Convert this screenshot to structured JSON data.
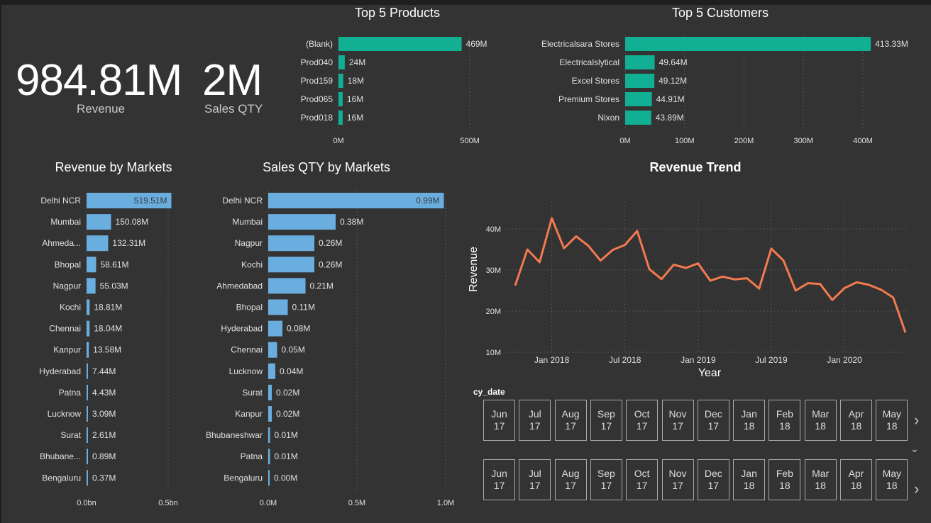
{
  "kpis": {
    "revenue": {
      "value": "984.81M",
      "label": "Revenue"
    },
    "sales_qty": {
      "value": "2M",
      "label": "Sales QTY"
    }
  },
  "colors": {
    "teal": "#11b094",
    "blue": "#6aaee0",
    "orange": "#f37a4f",
    "grid": "#555555",
    "axis_text": "#e0e0e0"
  },
  "chart_data": [
    {
      "id": "top_products",
      "type": "bar",
      "orientation": "horizontal",
      "title": "Top 5 Products",
      "categories": [
        "(Blank)",
        "Prod040",
        "Prod159",
        "Prod065",
        "Prod018"
      ],
      "values": [
        469,
        24,
        18,
        16,
        16
      ],
      "labels": [
        "469M",
        "24M",
        "18M",
        "16M",
        "16M"
      ],
      "xticks": [
        "0M",
        "500M"
      ],
      "xlim": [
        0,
        500
      ]
    },
    {
      "id": "top_customers",
      "type": "bar",
      "orientation": "horizontal",
      "title": "Top 5 Customers",
      "categories": [
        "Electricalsara Stores",
        "Electricalslytical",
        "Excel Stores",
        "Premium Stores",
        "Nixon"
      ],
      "values": [
        413.33,
        49.64,
        49.12,
        44.91,
        43.89
      ],
      "labels": [
        "413.33M",
        "49.64M",
        "49.12M",
        "44.91M",
        "43.89M"
      ],
      "xticks": [
        "0M",
        "100M",
        "200M",
        "300M",
        "400M"
      ],
      "xlim": [
        0,
        400
      ]
    },
    {
      "id": "revenue_markets",
      "type": "bar",
      "orientation": "horizontal",
      "title": "Revenue by Markets",
      "categories": [
        "Delhi NCR",
        "Mumbai",
        "Ahmeda...",
        "Bhopal",
        "Nagpur",
        "Kochi",
        "Chennai",
        "Kanpur",
        "Hyderabad",
        "Patna",
        "Lucknow",
        "Surat",
        "Bhubane...",
        "Bengaluru"
      ],
      "values": [
        519.51,
        150.08,
        132.31,
        58.61,
        55.03,
        18.81,
        18.04,
        13.58,
        7.44,
        4.43,
        3.09,
        2.61,
        0.89,
        0.37
      ],
      "labels": [
        "519.51M",
        "150.08M",
        "132.31M",
        "58.61M",
        "55.03M",
        "18.81M",
        "18.04M",
        "13.58M",
        "7.44M",
        "4.43M",
        "3.09M",
        "2.61M",
        "0.89M",
        "0.37M"
      ],
      "xticks": [
        "0.0bn",
        "0.5bn"
      ],
      "xlim": [
        0,
        500
      ]
    },
    {
      "id": "qty_markets",
      "type": "bar",
      "orientation": "horizontal",
      "title": "Sales QTY by Markets",
      "categories": [
        "Delhi NCR",
        "Mumbai",
        "Nagpur",
        "Kochi",
        "Ahmedabad",
        "Bhopal",
        "Hyderabad",
        "Chennai",
        "Lucknow",
        "Surat",
        "Kanpur",
        "Bhubaneshwar",
        "Patna",
        "Bengaluru"
      ],
      "values": [
        0.99,
        0.38,
        0.26,
        0.26,
        0.21,
        0.11,
        0.08,
        0.05,
        0.04,
        0.02,
        0.02,
        0.01,
        0.01,
        0.004
      ],
      "labels": [
        "0.99M",
        "0.38M",
        "0.26M",
        "0.26M",
        "0.21M",
        "0.11M",
        "0.08M",
        "0.05M",
        "0.04M",
        "0.02M",
        "0.02M",
        "0.01M",
        "0.01M",
        "0.00M"
      ],
      "xticks": [
        "0.0M",
        "0.5M",
        "1.0M"
      ],
      "xlim": [
        0,
        1.0
      ]
    },
    {
      "id": "revenue_trend",
      "type": "line",
      "title": "Revenue Trend",
      "xlabel": "Year",
      "ylabel": "Revenue",
      "x": [
        "2017-10",
        "2017-11",
        "2017-12",
        "2018-01",
        "2018-02",
        "2018-03",
        "2018-04",
        "2018-05",
        "2018-06",
        "2018-07",
        "2018-08",
        "2018-09",
        "2018-10",
        "2018-11",
        "2018-12",
        "2019-01",
        "2019-02",
        "2019-03",
        "2019-04",
        "2019-05",
        "2019-06",
        "2019-07",
        "2019-08",
        "2019-09",
        "2019-10",
        "2019-11",
        "2019-12",
        "2020-01",
        "2020-02",
        "2020-03",
        "2020-04",
        "2020-05",
        "2020-06"
      ],
      "values": [
        26.2,
        35.0,
        31.9,
        42.6,
        35.3,
        38.2,
        35.9,
        32.3,
        34.9,
        36.1,
        39.5,
        30.2,
        27.8,
        31.3,
        30.5,
        31.6,
        27.4,
        28.4,
        27.7,
        28.0,
        25.5,
        35.2,
        32.3,
        25.0,
        26.8,
        26.6,
        22.7,
        25.6,
        27.0,
        26.4,
        25.2,
        23.3,
        14.8
      ],
      "yticks": [
        "10M",
        "20M",
        "30M",
        "40M"
      ],
      "ylim": [
        10,
        45
      ],
      "xticks": [
        "Jan 2018",
        "Jul 2018",
        "Jan 2019",
        "Jul 2019",
        "Jan 2020"
      ]
    }
  ],
  "slicer": {
    "header": "cy_date",
    "row1": [
      {
        "m": "Jun",
        "y": "17"
      },
      {
        "m": "Jul",
        "y": "17"
      },
      {
        "m": "Aug",
        "y": "17"
      },
      {
        "m": "Sep",
        "y": "17"
      },
      {
        "m": "Oct",
        "y": "17"
      },
      {
        "m": "Nov",
        "y": "17"
      },
      {
        "m": "Dec",
        "y": "17"
      },
      {
        "m": "Jan",
        "y": "18"
      },
      {
        "m": "Feb",
        "y": "18"
      },
      {
        "m": "Mar",
        "y": "18"
      },
      {
        "m": "Apr",
        "y": "18"
      },
      {
        "m": "May",
        "y": "18"
      }
    ],
    "row2": [
      {
        "m": "Jun",
        "y": "17"
      },
      {
        "m": "Jul",
        "y": "17"
      },
      {
        "m": "Aug",
        "y": "17"
      },
      {
        "m": "Sep",
        "y": "17"
      },
      {
        "m": "Oct",
        "y": "17"
      },
      {
        "m": "Nov",
        "y": "17"
      },
      {
        "m": "Dec",
        "y": "17"
      },
      {
        "m": "Jan",
        "y": "18"
      },
      {
        "m": "Feb",
        "y": "18"
      },
      {
        "m": "Mar",
        "y": "18"
      },
      {
        "m": "Apr",
        "y": "18"
      },
      {
        "m": "May",
        "y": "18"
      }
    ],
    "next_icon": "chevron-right-icon",
    "expand_icon": "chevron-down-icon"
  }
}
